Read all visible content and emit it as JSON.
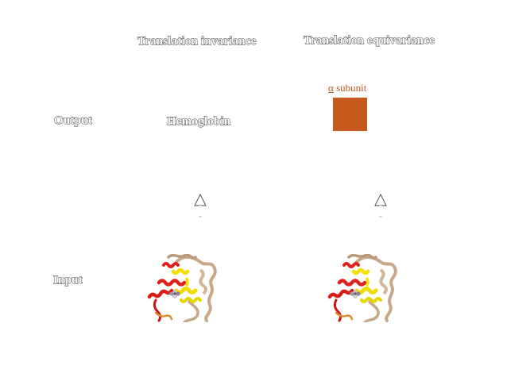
{
  "columns": {
    "invariance": "Translation invariance",
    "equivariance": "Translation equivariance"
  },
  "rows": {
    "output": "Output",
    "input": "Input"
  },
  "invariance_output": "Hemoglobin",
  "equivariance_output": {
    "alpha_symbol": "α",
    "label_rest": " subunit",
    "color": "#c55a1a"
  },
  "icons": {
    "arrow": "up-arrow-icon",
    "protein": "hemoglobin-structure-icon"
  }
}
